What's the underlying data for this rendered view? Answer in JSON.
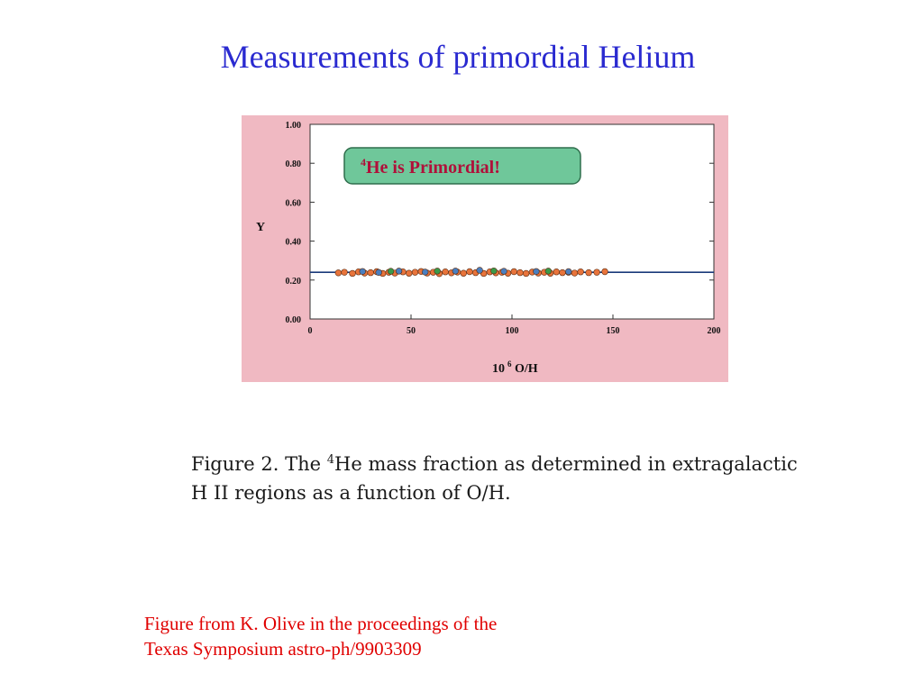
{
  "slide": {
    "title": "Measurements of primordial Helium"
  },
  "chart_data": {
    "type": "scatter",
    "xlabel_base": "10",
    "xlabel_exp": "6",
    "xlabel_rest": " O/H",
    "ylabel": "Y",
    "xlim": [
      0,
      200
    ],
    "ylim": [
      0,
      1.0
    ],
    "x_ticks": [
      0,
      50,
      100,
      150,
      200
    ],
    "x_tick_labels": [
      "0",
      "50",
      "100",
      "150",
      "200"
    ],
    "y_ticks": [
      0,
      0.2,
      0.4,
      0.6,
      0.8,
      1.0
    ],
    "y_tick_labels": [
      "0.00",
      "0.20",
      "0.40",
      "0.60",
      "0.80",
      "1.00"
    ],
    "annotation": {
      "sup": "4",
      "text": "He is Primordial!"
    },
    "fit_line": {
      "y": 0.24
    },
    "series": [
      {
        "color": "#e8743b",
        "points": [
          [
            14,
            0.237
          ],
          [
            17,
            0.24
          ],
          [
            21,
            0.234
          ],
          [
            24,
            0.242
          ],
          [
            27,
            0.236
          ],
          [
            30,
            0.238
          ],
          [
            33,
            0.243
          ],
          [
            36,
            0.234
          ],
          [
            39,
            0.24
          ],
          [
            42,
            0.236
          ],
          [
            46,
            0.242
          ],
          [
            49,
            0.235
          ],
          [
            52,
            0.24
          ],
          [
            55,
            0.244
          ],
          [
            58,
            0.236
          ],
          [
            61,
            0.24
          ],
          [
            64,
            0.233
          ],
          [
            67,
            0.242
          ],
          [
            70,
            0.237
          ],
          [
            73,
            0.241
          ],
          [
            76,
            0.235
          ],
          [
            79,
            0.243
          ],
          [
            82,
            0.238
          ],
          [
            86,
            0.234
          ],
          [
            89,
            0.242
          ],
          [
            92,
            0.237
          ],
          [
            95,
            0.24
          ],
          [
            98,
            0.235
          ],
          [
            101,
            0.243
          ],
          [
            104,
            0.238
          ],
          [
            107,
            0.234
          ],
          [
            110,
            0.241
          ],
          [
            113,
            0.236
          ],
          [
            116,
            0.24
          ],
          [
            119,
            0.235
          ],
          [
            122,
            0.242
          ],
          [
            125,
            0.238
          ],
          [
            128,
            0.24
          ],
          [
            131,
            0.236
          ],
          [
            134,
            0.242
          ],
          [
            138,
            0.238
          ],
          [
            142,
            0.24
          ],
          [
            146,
            0.243
          ]
        ]
      },
      {
        "color": "#4a7fc0",
        "points": [
          [
            26,
            0.244
          ],
          [
            34,
            0.239
          ],
          [
            44,
            0.246
          ],
          [
            57,
            0.241
          ],
          [
            72,
            0.246
          ],
          [
            84,
            0.25
          ],
          [
            96,
            0.245
          ],
          [
            112,
            0.244
          ],
          [
            128,
            0.243
          ]
        ]
      },
      {
        "color": "#3a9a4a",
        "points": [
          [
            40,
            0.245
          ],
          [
            63,
            0.246
          ],
          [
            91,
            0.247
          ],
          [
            118,
            0.246
          ]
        ]
      }
    ]
  },
  "figure_caption": {
    "part1": "Figure 2.  The ",
    "sup": "4",
    "part2": "He mass fraction as determined in extragalactic H II regions as a function of O/H."
  },
  "credit": {
    "line1": "Figure from K. Olive in the proceedings of  the",
    "line2": "Texas Symposium astro-ph/9903309"
  }
}
